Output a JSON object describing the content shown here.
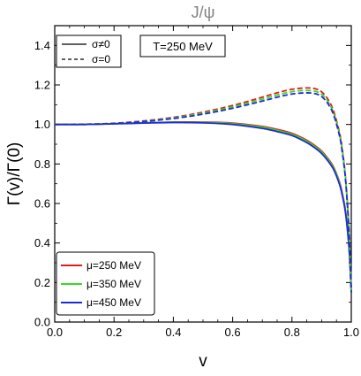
{
  "chart_data": {
    "type": "line",
    "title": "J/ψ",
    "xlabel": "v",
    "ylabel": "Γ(v)/Γ(0)",
    "xlim": [
      0.0,
      1.0
    ],
    "ylim": [
      0.0,
      1.5
    ],
    "xticks": [
      "0.0",
      "0.2",
      "0.4",
      "0.6",
      "0.8",
      "1.0"
    ],
    "yticks": [
      "0.0",
      "0.2",
      "0.4",
      "0.6",
      "0.8",
      "1.0",
      "1.2",
      "1.4"
    ],
    "annotation": "T=250 MeV",
    "style_legend": [
      {
        "label": "σ≠0",
        "dash": "solid"
      },
      {
        "label": "σ=0",
        "dash": "dashed"
      }
    ],
    "color_legend": [
      {
        "label": "μ=250 MeV",
        "color": "#e31a1c"
      },
      {
        "label": "μ=350 MeV",
        "color": "#33dd22"
      },
      {
        "label": "μ=450 MeV",
        "color": "#1f2bd6"
      }
    ],
    "x": [
      0.0,
      0.1,
      0.2,
      0.3,
      0.4,
      0.5,
      0.6,
      0.7,
      0.75,
      0.8,
      0.85,
      0.88,
      0.9,
      0.92,
      0.94,
      0.96,
      0.97,
      0.98,
      0.99,
      0.995,
      1.0
    ],
    "series": [
      {
        "legend": "μ=250 MeV",
        "sigma": "σ≠0",
        "color": "#e31a1c",
        "dash": "solid",
        "values": [
          1.0,
          1.0,
          1.004,
          1.008,
          1.012,
          1.012,
          1.007,
          0.99,
          0.975,
          0.955,
          0.92,
          0.89,
          0.865,
          0.83,
          0.785,
          0.71,
          0.65,
          0.57,
          0.43,
          0.32,
          0.15
        ]
      },
      {
        "legend": "μ=350 MeV",
        "sigma": "σ≠0",
        "color": "#33dd22",
        "dash": "solid",
        "values": [
          1.0,
          1.0,
          1.004,
          1.008,
          1.011,
          1.01,
          1.004,
          0.986,
          0.97,
          0.95,
          0.915,
          0.885,
          0.86,
          0.825,
          0.78,
          0.705,
          0.645,
          0.565,
          0.425,
          0.315,
          0.15
        ]
      },
      {
        "legend": "μ=450 MeV",
        "sigma": "σ≠0",
        "color": "#1f2bd6",
        "dash": "solid",
        "values": [
          1.0,
          1.0,
          1.003,
          1.007,
          1.01,
          1.008,
          1.0,
          0.98,
          0.964,
          0.944,
          0.908,
          0.878,
          0.853,
          0.818,
          0.773,
          0.698,
          0.638,
          0.558,
          0.42,
          0.31,
          0.15
        ]
      },
      {
        "legend": "μ=250 MeV",
        "sigma": "σ=0",
        "color": "#e31a1c",
        "dash": "dashed",
        "values": [
          1.0,
          1.001,
          1.006,
          1.018,
          1.036,
          1.062,
          1.096,
          1.138,
          1.16,
          1.178,
          1.185,
          1.18,
          1.165,
          1.13,
          1.07,
          0.96,
          0.87,
          0.74,
          0.53,
          0.38,
          0.15
        ]
      },
      {
        "legend": "μ=350 MeV",
        "sigma": "σ=0",
        "color": "#33dd22",
        "dash": "dashed",
        "values": [
          1.0,
          1.001,
          1.005,
          1.016,
          1.033,
          1.057,
          1.089,
          1.128,
          1.149,
          1.166,
          1.172,
          1.167,
          1.153,
          1.119,
          1.06,
          0.952,
          0.863,
          0.735,
          0.525,
          0.375,
          0.15
        ]
      },
      {
        "legend": "μ=450 MeV",
        "sigma": "σ=0",
        "color": "#1f2bd6",
        "dash": "dashed",
        "values": [
          1.0,
          1.001,
          1.005,
          1.015,
          1.03,
          1.052,
          1.082,
          1.118,
          1.138,
          1.154,
          1.16,
          1.155,
          1.141,
          1.108,
          1.05,
          0.944,
          0.856,
          0.73,
          0.52,
          0.37,
          0.15
        ]
      }
    ]
  }
}
